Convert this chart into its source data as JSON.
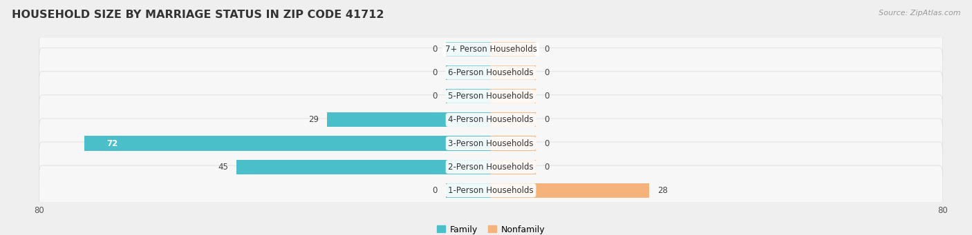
{
  "title": "HOUSEHOLD SIZE BY MARRIAGE STATUS IN ZIP CODE 41712",
  "source": "Source: ZipAtlas.com",
  "categories": [
    "7+ Person Households",
    "6-Person Households",
    "5-Person Households",
    "4-Person Households",
    "3-Person Households",
    "2-Person Households",
    "1-Person Households"
  ],
  "family_values": [
    0,
    0,
    0,
    29,
    72,
    45,
    0
  ],
  "nonfamily_values": [
    0,
    0,
    0,
    0,
    0,
    0,
    28
  ],
  "family_color": "#4BBFC9",
  "nonfamily_color": "#F5B27A",
  "bar_height": 0.62,
  "xlim": 80,
  "stub_size": 8,
  "background_color": "#efefef",
  "row_bg_color": "#f7f7f7",
  "row_border_color": "#d8d8d8",
  "title_fontsize": 11.5,
  "label_fontsize": 8.5,
  "value_fontsize": 8.5,
  "tick_fontsize": 8.5,
  "legend_fontsize": 9,
  "source_fontsize": 8
}
